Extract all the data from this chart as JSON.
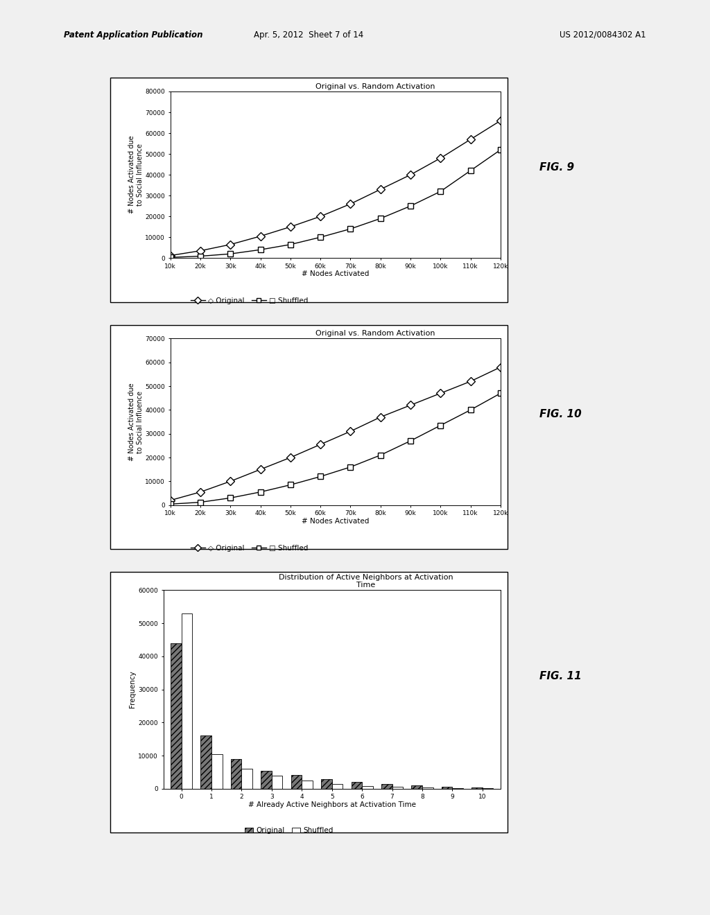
{
  "page_header_left": "Patent Application Publication",
  "page_header_mid": "Apr. 5, 2012  Sheet 7 of 14",
  "page_header_right": "US 2012/0084302 A1",
  "fig9": {
    "title": "Original vs. Random Activation",
    "xlabel": "# Nodes Activated",
    "ylabel": "# Nodes Activated due\nto Social Influence",
    "xlim": [
      10000,
      120000
    ],
    "ylim": [
      0,
      80000
    ],
    "xticks": [
      10000,
      20000,
      30000,
      40000,
      50000,
      60000,
      70000,
      80000,
      90000,
      100000,
      110000,
      120000
    ],
    "xticklabels": [
      "10k",
      "20k",
      "30k",
      "40k",
      "50k",
      "60k",
      "70k",
      "80k",
      "90k",
      "100k",
      "110k",
      "120k"
    ],
    "yticks": [
      0,
      10000,
      20000,
      30000,
      40000,
      50000,
      60000,
      70000,
      80000
    ],
    "yticklabels": [
      "0",
      "10000",
      "20000",
      "30000",
      "40000",
      "50000",
      "60000",
      "70000",
      "80000"
    ],
    "original_y": [
      1200,
      3500,
      6500,
      10500,
      15000,
      20000,
      26000,
      33000,
      40000,
      48000,
      57000,
      66000
    ],
    "shuffled_y": [
      300,
      900,
      2000,
      4000,
      6500,
      10000,
      14000,
      19000,
      25000,
      32000,
      42000,
      52000
    ],
    "fig_label": "FIG. 9"
  },
  "fig10": {
    "title": "Original vs. Random Activation",
    "xlabel": "# Nodes Activated",
    "ylabel": "# Nodes Activated due\nto Social Influence",
    "xlim": [
      10000,
      120000
    ],
    "ylim": [
      0,
      70000
    ],
    "xticks": [
      10000,
      20000,
      30000,
      40000,
      50000,
      60000,
      70000,
      80000,
      90000,
      100000,
      110000,
      120000
    ],
    "xticklabels": [
      "10k",
      "20k",
      "30k",
      "40k",
      "50k",
      "60k",
      "70k",
      "80k",
      "90k",
      "100k",
      "110k",
      "120k"
    ],
    "yticks": [
      0,
      10000,
      20000,
      30000,
      40000,
      50000,
      60000,
      70000
    ],
    "yticklabels": [
      "0",
      "10000",
      "20000",
      "30000",
      "40000",
      "50000",
      "60000",
      "70000"
    ],
    "original_y": [
      2000,
      5500,
      10000,
      15000,
      20000,
      25500,
      31000,
      37000,
      42000,
      47000,
      52000,
      58000
    ],
    "shuffled_y": [
      400,
      1200,
      3000,
      5500,
      8500,
      12000,
      16000,
      21000,
      27000,
      33500,
      40000,
      47000
    ],
    "fig_label": "FIG. 10"
  },
  "fig11": {
    "title": "Distribution of Active Neighbors at Activation\nTime",
    "xlabel": "# Already Active Neighbors at Activation Time",
    "ylabel": "Frequency",
    "xlim": [
      -0.6,
      10.6
    ],
    "ylim": [
      0,
      60000
    ],
    "xticks": [
      0,
      1,
      2,
      3,
      4,
      5,
      6,
      7,
      8,
      9,
      10
    ],
    "yticks": [
      0,
      10000,
      20000,
      30000,
      40000,
      50000,
      60000
    ],
    "yticklabels": [
      "0",
      "10000",
      "20000",
      "30000",
      "40000",
      "50000",
      "60000"
    ],
    "original_y": [
      44000,
      16000,
      9000,
      5500,
      4200,
      2800,
      2000,
      1400,
      1000,
      600,
      350
    ],
    "shuffled_y": [
      53000,
      10500,
      6000,
      4000,
      2500,
      1500,
      900,
      600,
      350,
      200,
      100
    ],
    "fig_label": "FIG. 11",
    "original_color": "#777777",
    "shuffled_color": "#ffffff"
  },
  "background_color": "#f0f0f0",
  "box_facecolor": "#ffffff",
  "line_color": "#000000"
}
